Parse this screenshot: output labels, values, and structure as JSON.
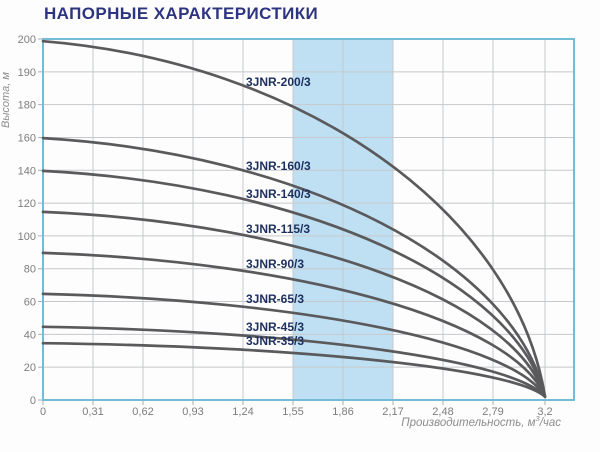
{
  "title": "НАПОРНЫЕ ХАРАКТЕРИСТИКИ",
  "chart_data": {
    "type": "line",
    "title": "НАПОРНЫЕ ХАРАКТЕРИСТИКИ",
    "xlabel": "Производительность, м³/час",
    "xlabel_parts": {
      "prefix": "Производительность, м",
      "sup": "3",
      "suffix": "/час"
    },
    "ylabel": "Высота, м",
    "x_tick_labels": [
      "0",
      "0,31",
      "0,62",
      "0,93",
      "1,24",
      "1,55",
      "1,86",
      "2,17",
      "2,48",
      "2,79",
      "3,2"
    ],
    "x_tick_values": [
      0,
      0.31,
      0.62,
      0.93,
      1.24,
      1.55,
      1.86,
      2.17,
      2.48,
      2.79,
      3.2
    ],
    "y_tick_labels": [
      "200",
      "190",
      "180",
      "160",
      "140",
      "120",
      "100",
      "80",
      "60",
      "40",
      "20",
      "0"
    ],
    "y_tick_values": [
      200,
      190,
      180,
      160,
      140,
      120,
      100,
      80,
      60,
      40,
      20,
      0
    ],
    "x_range": [
      0,
      3.2
    ],
    "grid": true,
    "legend_position": "labels-on-curves",
    "highlight_band": {
      "x_from": 1.55,
      "x_to": 2.17,
      "color": "#bfdff3"
    },
    "convergence_point": {
      "x": 3.2,
      "y": 2
    },
    "series": [
      {
        "name": "3JNR-200/3",
        "head_at_zero_flow_m": 200,
        "points": [
          [
            0,
            200
          ],
          [
            1.55,
            180
          ],
          [
            2.17,
            142
          ],
          [
            2.79,
            80
          ],
          [
            3.2,
            2
          ]
        ]
      },
      {
        "name": "3JNR-160/3",
        "head_at_zero_flow_m": 160,
        "points": [
          [
            0,
            160
          ],
          [
            1.55,
            131
          ],
          [
            2.17,
            104
          ],
          [
            2.79,
            59
          ],
          [
            3.2,
            2
          ]
        ]
      },
      {
        "name": "3JNR-140/3",
        "head_at_zero_flow_m": 140,
        "points": [
          [
            0,
            140
          ],
          [
            1.55,
            114
          ],
          [
            2.17,
            91
          ],
          [
            2.79,
            52
          ],
          [
            3.2,
            2
          ]
        ]
      },
      {
        "name": "3JNR-115/3",
        "head_at_zero_flow_m": 115,
        "points": [
          [
            0,
            115
          ],
          [
            1.55,
            94
          ],
          [
            2.17,
            75
          ],
          [
            2.79,
            43
          ],
          [
            3.2,
            2
          ]
        ]
      },
      {
        "name": "3JNR-90/3",
        "head_at_zero_flow_m": 90,
        "points": [
          [
            0,
            90
          ],
          [
            1.55,
            74
          ],
          [
            2.17,
            59
          ],
          [
            2.79,
            34
          ],
          [
            3.2,
            2
          ]
        ]
      },
      {
        "name": "3JNR-65/3",
        "head_at_zero_flow_m": 65,
        "points": [
          [
            0,
            65
          ],
          [
            1.55,
            53
          ],
          [
            2.17,
            43
          ],
          [
            2.79,
            25
          ],
          [
            3.2,
            2
          ]
        ]
      },
      {
        "name": "3JNR-45/3",
        "head_at_zero_flow_m": 45,
        "points": [
          [
            0,
            45
          ],
          [
            1.55,
            37
          ],
          [
            2.17,
            30
          ],
          [
            2.79,
            17
          ],
          [
            3.2,
            2
          ]
        ]
      },
      {
        "name": "3JNR-35/3",
        "head_at_zero_flow_m": 35,
        "points": [
          [
            0,
            35
          ],
          [
            1.55,
            29
          ],
          [
            2.17,
            23
          ],
          [
            2.79,
            14
          ],
          [
            3.2,
            2
          ]
        ]
      }
    ]
  },
  "colors": {
    "title": "#2e3580",
    "curve": "#5a5a5c",
    "curve_label": "#1c2f5e",
    "grid": "#c6c9cb",
    "frame": "#74bcd6",
    "tick_label": "#7d7d7d",
    "axis_title": "#8c8c8c",
    "band": "#bfdff3",
    "background": "#ffffff"
  }
}
